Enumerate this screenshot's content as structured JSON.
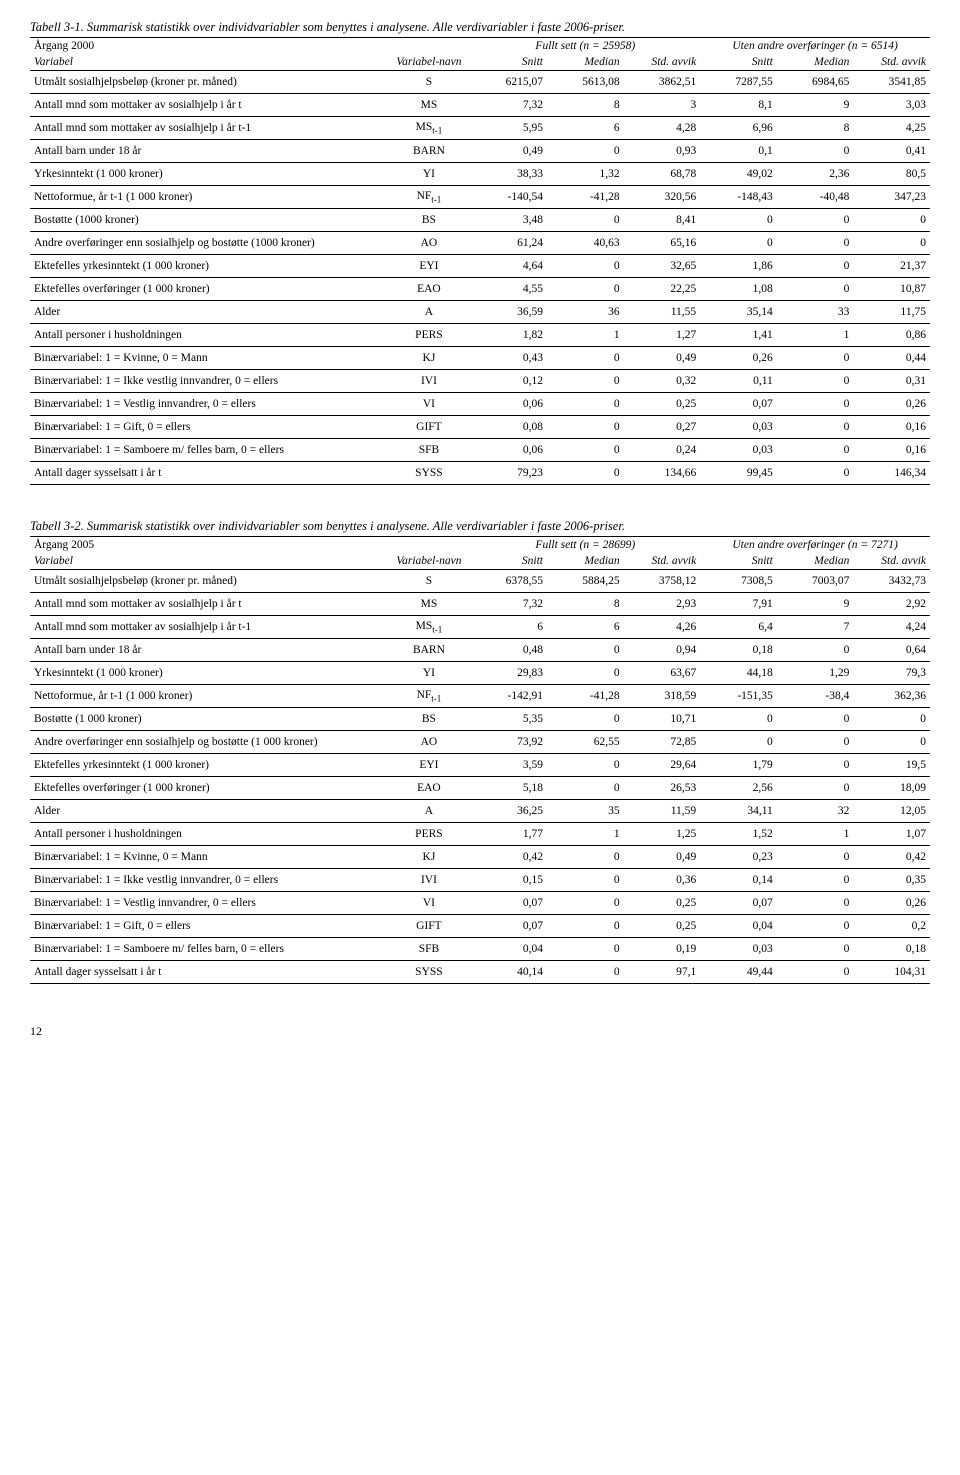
{
  "table1": {
    "title": "Tabell 3-1. Summarisk statistikk over individvariabler som benyttes i analysene. Alle verdivariabler i faste 2006-priser.",
    "argang": "Årgang 2000",
    "fullt_sett": "Fullt sett (n = 25958)",
    "uten_andre": "Uten andre overføringer (n = 6514)",
    "headers": {
      "variabel": "Variabel",
      "vnavn": "Variabel-navn",
      "snitt": "Snitt",
      "median": "Median",
      "stdavvik": "Std. avvik"
    },
    "rows": [
      {
        "label": "Utmålt sosialhjelpsbeløp (kroner pr. måned)",
        "vnavn": "S",
        "v": [
          "6215,07",
          "5613,08",
          "3862,51",
          "7287,55",
          "6984,65",
          "3541,85"
        ]
      },
      {
        "label": "Antall mnd som mottaker av sosialhjelp i år t",
        "vnavn": "MS",
        "v": [
          "7,32",
          "8",
          "3",
          "8,1",
          "9",
          "3,03"
        ]
      },
      {
        "label": "Antall mnd som mottaker av sosialhjelp i år t-1",
        "vnavn": "MS",
        "sub": "t-1",
        "v": [
          "5,95",
          "6",
          "4,28",
          "6,96",
          "8",
          "4,25"
        ]
      },
      {
        "label": "Antall barn under 18 år",
        "vnavn": "BARN",
        "v": [
          "0,49",
          "0",
          "0,93",
          "0,1",
          "0",
          "0,41"
        ]
      },
      {
        "label": "Yrkesinntekt (1 000 kroner)",
        "vnavn": "YI",
        "v": [
          "38,33",
          "1,32",
          "68,78",
          "49,02",
          "2,36",
          "80,5"
        ]
      },
      {
        "label": "Nettoformue, år t-1 (1 000 kroner)",
        "vnavn": "NF",
        "sub": "t-1",
        "v": [
          "-140,54",
          "-41,28",
          "320,56",
          "-148,43",
          "-40,48",
          "347,23"
        ]
      },
      {
        "label": "Bostøtte (1000 kroner)",
        "vnavn": "BS",
        "v": [
          "3,48",
          "0",
          "8,41",
          "0",
          "0",
          "0"
        ]
      },
      {
        "label": "Andre overføringer enn sosialhjelp og bostøtte (1000 kroner)",
        "vnavn": "AO",
        "v": [
          "61,24",
          "40,63",
          "65,16",
          "0",
          "0",
          "0"
        ]
      },
      {
        "label": "Ektefelles yrkesinntekt (1 000 kroner)",
        "vnavn": "EYI",
        "v": [
          "4,64",
          "0",
          "32,65",
          "1,86",
          "0",
          "21,37"
        ]
      },
      {
        "label": "Ektefelles overføringer (1 000 kroner)",
        "vnavn": "EAO",
        "v": [
          "4,55",
          "0",
          "22,25",
          "1,08",
          "0",
          "10,87"
        ]
      },
      {
        "label": "Alder",
        "vnavn": "A",
        "v": [
          "36,59",
          "36",
          "11,55",
          "35,14",
          "33",
          "11,75"
        ]
      },
      {
        "label": "Antall personer i husholdningen",
        "vnavn": "PERS",
        "v": [
          "1,82",
          "1",
          "1,27",
          "1,41",
          "1",
          "0,86"
        ]
      },
      {
        "label": "Binærvariabel: 1 = Kvinne, 0 = Mann",
        "vnavn": "KJ",
        "v": [
          "0,43",
          "0",
          "0,49",
          "0,26",
          "0",
          "0,44"
        ]
      },
      {
        "label": "Binærvariabel: 1 = Ikke vestlig innvandrer, 0 = ellers",
        "vnavn": "IVI",
        "v": [
          "0,12",
          "0",
          "0,32",
          "0,11",
          "0",
          "0,31"
        ]
      },
      {
        "label": "Binærvariabel: 1 = Vestlig innvandrer, 0 = ellers",
        "vnavn": "VI",
        "v": [
          "0,06",
          "0",
          "0,25",
          "0,07",
          "0",
          "0,26"
        ]
      },
      {
        "label": "Binærvariabel: 1 = Gift, 0 = ellers",
        "vnavn": "GIFT",
        "v": [
          "0,08",
          "0",
          "0,27",
          "0,03",
          "0",
          "0,16"
        ]
      },
      {
        "label": "Binærvariabel: 1 = Samboere m/ felles barn, 0 = ellers",
        "vnavn": "SFB",
        "v": [
          "0,06",
          "0",
          "0,24",
          "0,03",
          "0",
          "0,16"
        ]
      },
      {
        "label": "Antall dager sysselsatt i år t",
        "vnavn": "SYSS",
        "v": [
          "79,23",
          "0",
          "134,66",
          "99,45",
          "0",
          "146,34"
        ]
      }
    ]
  },
  "table2": {
    "title": "Tabell 3-2. Summarisk statistikk over individvariabler som benyttes i analysene. Alle verdivariabler i faste 2006-priser.",
    "argang": "Årgang 2005",
    "fullt_sett": "Fullt sett (n = 28699)",
    "uten_andre": "Uten andre overføringer (n = 7271)",
    "headers": {
      "variabel": "Variabel",
      "vnavn": "Variabel-navn",
      "snitt": "Snitt",
      "median": "Median",
      "stdavvik": "Std. avvik"
    },
    "rows": [
      {
        "label": "Utmålt sosialhjelpsbeløp (kroner pr. måned)",
        "vnavn": "S",
        "v": [
          "6378,55",
          "5884,25",
          "3758,12",
          "7308,5",
          "7003,07",
          "3432,73"
        ]
      },
      {
        "label": "Antall mnd som mottaker av sosialhjelp i år t",
        "vnavn": "MS",
        "v": [
          "7,32",
          "8",
          "2,93",
          "7,91",
          "9",
          "2,92"
        ]
      },
      {
        "label": "Antall mnd som mottaker av sosialhjelp i år t-1",
        "vnavn": "MS",
        "sub": "t-1",
        "v": [
          "6",
          "6",
          "4,26",
          "6,4",
          "7",
          "4,24"
        ]
      },
      {
        "label": "Antall barn under 18 år",
        "vnavn": "BARN",
        "v": [
          "0,48",
          "0",
          "0,94",
          "0,18",
          "0",
          "0,64"
        ]
      },
      {
        "label": "Yrkesinntekt (1 000 kroner)",
        "vnavn": "YI",
        "v": [
          "29,83",
          "0",
          "63,67",
          "44,18",
          "1,29",
          "79,3"
        ]
      },
      {
        "label": "Nettoformue, år t-1 (1 000 kroner)",
        "vnavn": "NF",
        "sub": "t-1",
        "v": [
          "-142,91",
          "-41,28",
          "318,59",
          "-151,35",
          "-38,4",
          "362,36"
        ]
      },
      {
        "label": "Bostøtte (1 000 kroner)",
        "vnavn": "BS",
        "v": [
          "5,35",
          "0",
          "10,71",
          "0",
          "0",
          "0"
        ]
      },
      {
        "label": "Andre overføringer enn sosialhjelp og bostøtte (1 000 kroner)",
        "vnavn": "AO",
        "v": [
          "73,92",
          "62,55",
          "72,85",
          "0",
          "0",
          "0"
        ]
      },
      {
        "label": "Ektefelles yrkesinntekt (1 000 kroner)",
        "vnavn": "EYI",
        "v": [
          "3,59",
          "0",
          "29,64",
          "1,79",
          "0",
          "19,5"
        ]
      },
      {
        "label": "Ektefelles overføringer (1 000 kroner)",
        "vnavn": "EAO",
        "v": [
          "5,18",
          "0",
          "26,53",
          "2,56",
          "0",
          "18,09"
        ]
      },
      {
        "label": "Alder",
        "vnavn": "A",
        "v": [
          "36,25",
          "35",
          "11,59",
          "34,11",
          "32",
          "12,05"
        ]
      },
      {
        "label": "Antall personer i husholdningen",
        "vnavn": "PERS",
        "v": [
          "1,77",
          "1",
          "1,25",
          "1,52",
          "1",
          "1,07"
        ]
      },
      {
        "label": "Binærvariabel: 1 = Kvinne, 0 = Mann",
        "vnavn": "KJ",
        "v": [
          "0,42",
          "0",
          "0,49",
          "0,23",
          "0",
          "0,42"
        ]
      },
      {
        "label": "Binærvariabel: 1 = Ikke vestlig innvandrer, 0 = ellers",
        "vnavn": "IVI",
        "v": [
          "0,15",
          "0",
          "0,36",
          "0,14",
          "0",
          "0,35"
        ]
      },
      {
        "label": "Binærvariabel: 1 = Vestlig innvandrer, 0 = ellers",
        "vnavn": "VI",
        "v": [
          "0,07",
          "0",
          "0,25",
          "0,07",
          "0",
          "0,26"
        ]
      },
      {
        "label": "Binærvariabel: 1 = Gift, 0 = ellers",
        "vnavn": "GIFT",
        "v": [
          "0,07",
          "0",
          "0,25",
          "0,04",
          "0",
          "0,2"
        ]
      },
      {
        "label": "Binærvariabel: 1 = Samboere m/ felles barn, 0 = ellers",
        "vnavn": "SFB",
        "v": [
          "0,04",
          "0",
          "0,19",
          "0,03",
          "0",
          "0,18"
        ]
      },
      {
        "label": "Antall dager sysselsatt i år t",
        "vnavn": "SYSS",
        "v": [
          "40,14",
          "0",
          "97,1",
          "49,44",
          "0",
          "104,31"
        ]
      }
    ]
  },
  "page_number": "12"
}
